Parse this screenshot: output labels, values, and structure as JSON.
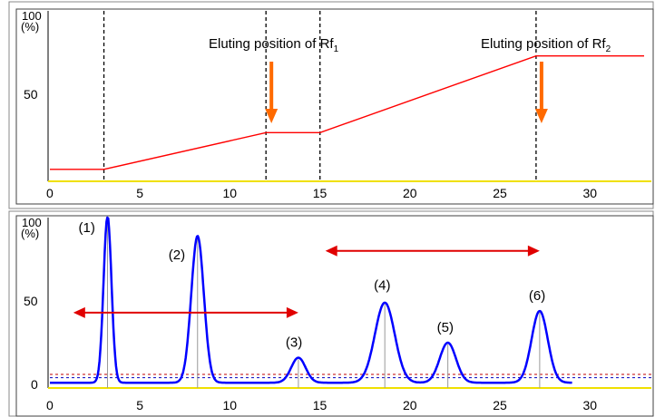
{
  "chart_data": [
    {
      "type": "line",
      "name_hint": "gradient",
      "xlim": [
        0,
        33
      ],
      "ylim": [
        0,
        100
      ],
      "y_top_label": "100",
      "y_unit_label": "(%)",
      "x_ticks": [
        0,
        5,
        10,
        15,
        20,
        25,
        30
      ],
      "y_ticks": [
        50
      ],
      "vlines": [
        3,
        12,
        15,
        27
      ],
      "series": [
        {
          "color": "#ff0000",
          "x": [
            0,
            3,
            12,
            15,
            27,
            33
          ],
          "y": [
            5,
            5,
            27,
            27,
            73,
            73
          ]
        }
      ],
      "annotations": [
        {
          "text": "Eluting position of Rf",
          "sub": "1",
          "arrow_x": 12
        },
        {
          "text": "Eluting position of Rf",
          "sub": "2",
          "arrow_x": 27
        }
      ],
      "arrow_color": "#ff6a00"
    },
    {
      "type": "line",
      "name_hint": "chromatogram",
      "xlim": [
        0,
        33
      ],
      "ylim": [
        0,
        100
      ],
      "y_top_label": "100",
      "y_unit_label": "(%)",
      "x_ticks": [
        0,
        5,
        10,
        15,
        20,
        25,
        30
      ],
      "y_ticks": [
        0,
        50
      ],
      "series": [
        {
          "color": "#0000ff",
          "peaks": [
            {
              "label": "(1)",
              "x": 3.2,
              "y": 100,
              "sigma": 0.22
            },
            {
              "label": "(2)",
              "x": 8.2,
              "y": 88,
              "sigma": 0.35
            },
            {
              "label": "(3)",
              "x": 13.8,
              "y": 15,
              "sigma": 0.4
            },
            {
              "label": "(4)",
              "x": 18.6,
              "y": 48,
              "sigma": 0.55
            },
            {
              "label": "(5)",
              "x": 22.1,
              "y": 24,
              "sigma": 0.45
            },
            {
              "label": "(6)",
              "x": 27.2,
              "y": 43,
              "sigma": 0.45
            }
          ],
          "baseline": 1,
          "x_end": 29
        }
      ],
      "threshold_lines": [
        {
          "y": 6,
          "color": "#c00000"
        },
        {
          "y": 4,
          "color": "#0000c0"
        }
      ],
      "range_arrows": [
        {
          "x1": 1.3,
          "x2": 13.8,
          "y": 43,
          "color": "#e00000"
        },
        {
          "x1": 15.3,
          "x2": 27.2,
          "y": 80,
          "color": "#e00000"
        }
      ]
    }
  ]
}
